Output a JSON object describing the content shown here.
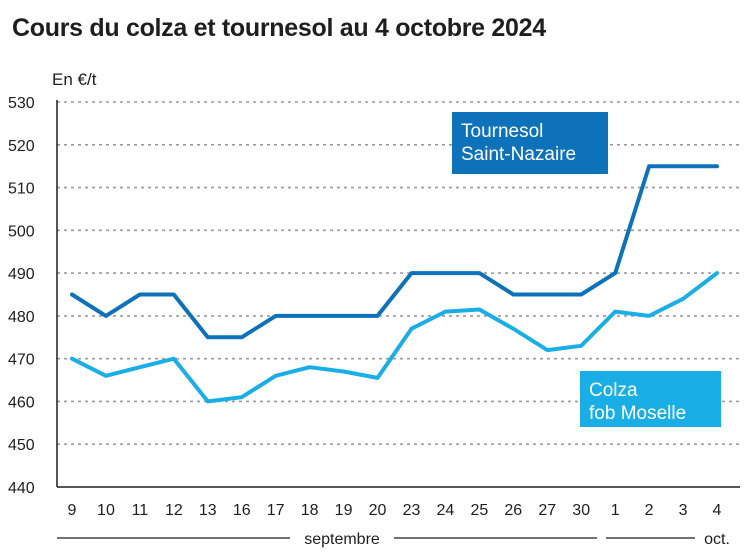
{
  "title": "Cours du colza et tournesol au 4 octobre 2024",
  "ylabel": "En €/t",
  "colors": {
    "tournesol": "#0d72b9",
    "colza": "#1aaee6",
    "grid": "#9a9a9a",
    "axis": "#1e1e1e"
  },
  "chart_data": {
    "type": "line",
    "title": "Cours du colza et tournesol au 4 octobre 2024",
    "ylabel": "En €/t",
    "xlabel": "",
    "ylim": [
      440,
      530
    ],
    "yticks": [
      440,
      450,
      460,
      470,
      480,
      490,
      500,
      510,
      520,
      530
    ],
    "grid": true,
    "categories": [
      "9",
      "10",
      "11",
      "12",
      "13",
      "16",
      "17",
      "18",
      "19",
      "20",
      "23",
      "24",
      "25",
      "26",
      "27",
      "30",
      "1",
      "2",
      "3",
      "4"
    ],
    "month_groups": [
      {
        "label": "septembre",
        "from": 0,
        "to": 15
      },
      {
        "label": "oct.",
        "from": 16,
        "to": 19
      }
    ],
    "series": [
      {
        "name": "Tournesol Saint-Nazaire",
        "name_lines": [
          "Tournesol",
          "Saint-Nazaire"
        ],
        "color": "#0d72b9",
        "values": [
          485,
          480,
          485,
          485,
          475,
          475,
          480,
          480,
          480,
          480,
          490,
          490,
          490,
          485,
          485,
          485,
          490,
          515,
          515,
          515
        ]
      },
      {
        "name": "Colza fob Moselle",
        "name_lines": [
          "Colza",
          "fob Moselle"
        ],
        "color": "#1aaee6",
        "values": [
          470,
          466,
          468,
          470,
          460,
          461,
          466,
          468,
          467,
          465.5,
          477,
          481,
          481.5,
          477,
          472,
          473,
          481,
          480,
          484,
          490
        ]
      }
    ]
  }
}
